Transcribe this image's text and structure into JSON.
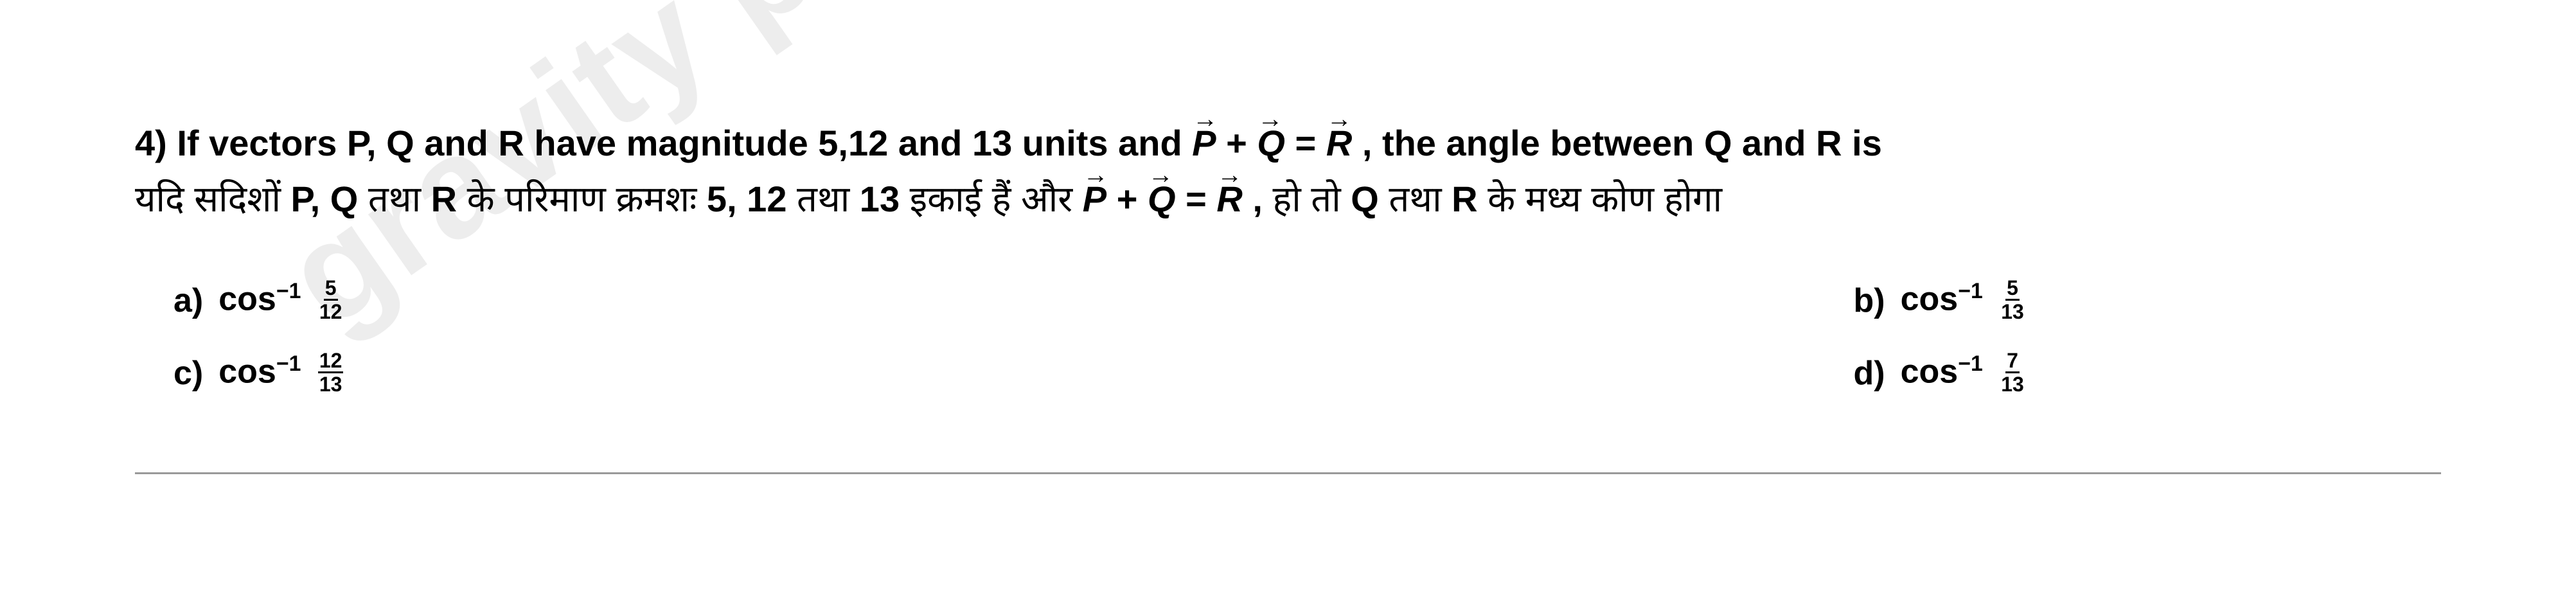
{
  "watermark": "gravity phy",
  "question": {
    "number": "4)",
    "en_prefix": "If vectors P, Q and R have magnitude 5,12 and 13 units and ",
    "en_eq_p": "P",
    "en_eq_plus": " + ",
    "en_eq_q": "Q",
    "en_eq_eq": " = ",
    "en_eq_r": "R",
    "en_suffix": ", the angle between Q and R is",
    "hi_prefix": "यदि सदिशों P, Q तथा R के परिमाण क्रमशः 5, 12 तथा 13 इकाई हैं और ",
    "hi_eq_p": "P",
    "hi_eq_plus": " + ",
    "hi_eq_q": "Q",
    "hi_eq_eq": " = ",
    "hi_eq_r": "R",
    "hi_suffix": ", हो तो Q तथा R के मध्य कोण होगा"
  },
  "options": {
    "a": {
      "label": "a)",
      "func": "cos",
      "exp": "−1",
      "num": "5",
      "den": "12"
    },
    "b": {
      "label": "b)",
      "func": "cos",
      "exp": "−1",
      "num": "5",
      "den": "13"
    },
    "c": {
      "label": "c)",
      "func": "cos",
      "exp": "−1",
      "num": "12",
      "den": "13"
    },
    "d": {
      "label": "d)",
      "func": "cos",
      "exp": "−1",
      "num": "7",
      "den": "13"
    }
  },
  "colors": {
    "text": "#000000",
    "watermark": "#d9d9d9",
    "background": "#ffffff",
    "rule": "#9a9a9a"
  }
}
